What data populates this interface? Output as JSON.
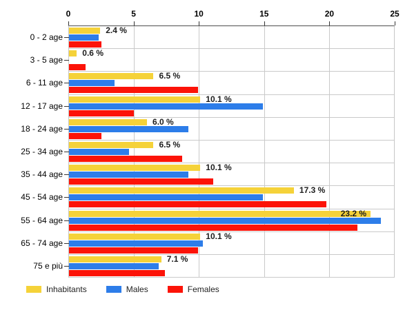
{
  "chart_data": {
    "type": "bar",
    "orientation": "horizontal",
    "title": "",
    "xlabel": "",
    "ylabel": "",
    "xlim": [
      0,
      25
    ],
    "x_ticks": [
      0,
      5,
      10,
      15,
      20,
      25
    ],
    "grid": true,
    "legend_position": "bottom",
    "categories": [
      "0 - 2 age",
      "3 - 5 age",
      "6 - 11 age",
      "12 - 17 age",
      "18 - 24 age",
      "25 - 34 age",
      "35 - 44 age",
      "45 - 54 age",
      "55 - 64 age",
      "65 - 74 age",
      "75 e più"
    ],
    "series": [
      {
        "name": "Inhabitants",
        "color": "#F5D239",
        "values": [
          2.4,
          0.6,
          6.5,
          10.1,
          6.0,
          6.5,
          10.1,
          17.3,
          23.2,
          10.1,
          7.1
        ]
      },
      {
        "name": "Males",
        "color": "#2D7DE9",
        "values": [
          2.3,
          0.0,
          3.5,
          14.9,
          9.2,
          4.6,
          9.2,
          14.9,
          24.0,
          10.3,
          6.9
        ]
      },
      {
        "name": "Females",
        "color": "#FC1308",
        "values": [
          2.5,
          1.3,
          9.9,
          5.0,
          2.5,
          8.7,
          11.1,
          19.8,
          22.2,
          9.9,
          7.4
        ]
      }
    ],
    "bar_labels": [
      "2.4 %",
      "0.6 %",
      "6.5 %",
      "10.1 %",
      "6.0 %",
      "6.5 %",
      "10.1 %",
      "17.3 %",
      "23.2 %",
      "10.1 %",
      "7.1 %"
    ],
    "bar_labels_on_series": "Inhabitants"
  },
  "colors": {
    "grid": "#C9C9C9",
    "axis_line": "#4D4D4D",
    "tick": "#333333",
    "label_text": "#1C1C1C"
  }
}
